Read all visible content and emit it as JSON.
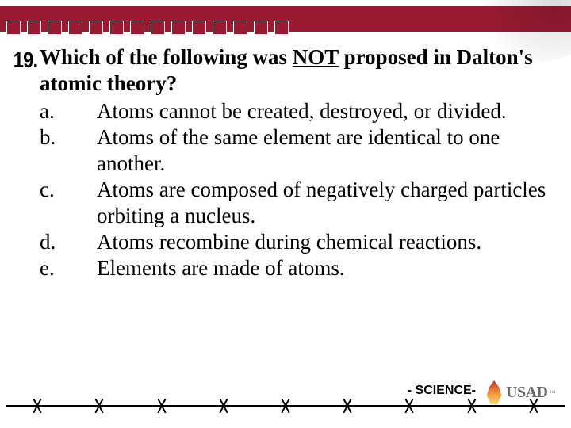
{
  "slide": {
    "number": "19.",
    "question_pre": "Which of the following was ",
    "question_not": "NOT",
    "question_post": " proposed in Dalton's atomic theory?",
    "options": [
      {
        "letter": "a.",
        "text": "Atoms cannot be created, destroyed, or divided."
      },
      {
        "letter": "b.",
        "text": "Atoms of the same element are identical to one another."
      },
      {
        "letter": "c.",
        "text": "Atoms are composed of negatively charged particles orbiting a nucleus."
      },
      {
        "letter": "d.",
        "text": "Atoms recombine during chemical reactions."
      },
      {
        "letter": "e.",
        "text": "Elements are made of atoms."
      }
    ],
    "footer_label": "- SCIENCE-",
    "logo_text": "USAD",
    "logo_tm": "™"
  },
  "style": {
    "accent_color": "#9a1b31",
    "background": "#ffffff",
    "body_font": "Times New Roman",
    "body_fontsize_pt": 20,
    "question_fontweight": "bold",
    "underline_word": "NOT",
    "barb_count": 9,
    "header_square_count": 14
  }
}
